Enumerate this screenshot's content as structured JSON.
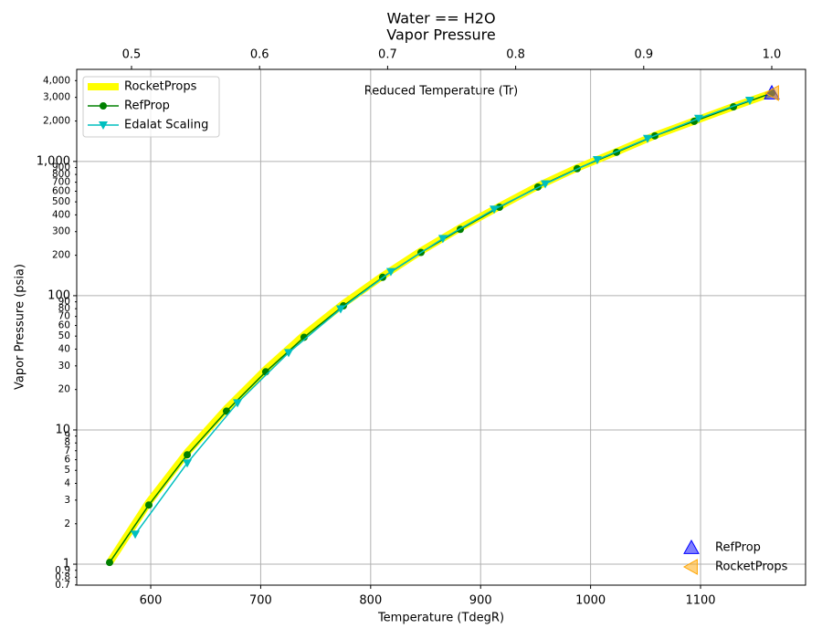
{
  "chart_data": {
    "type": "line",
    "title": "Water == H2O",
    "subtitle": "Vapor Pressure",
    "xlabel": "Temperature (TdegR)",
    "ylabel": "Vapor Pressure (psia)",
    "x2label": "Reduced Temperature (Tr)",
    "xlim": [
      532.7,
      1195.5
    ],
    "xticks": [
      600,
      700,
      800,
      900,
      1000,
      1100
    ],
    "x2lim": [
      0.4572,
      1.0264
    ],
    "x2ticks": [
      0.5,
      0.6,
      0.7,
      0.8,
      0.9,
      {
        "value": 1,
        "label": "1.0"
      }
    ],
    "ylim": [
      0.698,
      4850
    ],
    "log_y": true,
    "yticks": [
      1,
      10,
      100,
      {
        "value": 1000,
        "label": "1,000"
      }
    ],
    "yminor_ticks": [
      0.7,
      0.8,
      0.9,
      2,
      3,
      4,
      5,
      6,
      7,
      8,
      9,
      20,
      30,
      40,
      50,
      60,
      70,
      80,
      90,
      200,
      300,
      400,
      500,
      600,
      700,
      800,
      900,
      {
        "value": 2000,
        "label": "2,000"
      },
      {
        "value": 3000,
        "label": "3,000"
      },
      {
        "value": 4000,
        "label": "4,000"
      }
    ],
    "grid": true,
    "legend": "upper left",
    "series": [
      {
        "name": "RocketProps",
        "color": "#ffff00",
        "linewidth": 8,
        "marker": "none",
        "x": [
          562.6,
          598.3,
          633.2,
          668.9,
          704.6,
          739.5,
          775.2,
          810.9,
          845.8,
          881.5,
          917.2,
          952.1,
          987.8,
          1023.6,
          1058.4,
          1094.2,
          1129.9,
          1164.8
        ],
        "values": [
          1.03,
          2.9,
          6.8,
          14.4,
          28.2,
          51,
          87,
          140,
          215,
          320,
          462,
          655,
          895,
          1180,
          1560,
          2000,
          2560,
          3230
        ]
      },
      {
        "name": "RefProp",
        "color": "#008000",
        "linewidth": 1.5,
        "marker": "circle",
        "x": [
          562.6,
          598.3,
          633.2,
          668.9,
          704.6,
          739.5,
          775.2,
          810.9,
          845.8,
          881.5,
          917.2,
          952.1,
          987.8,
          1023.6,
          1058.4,
          1094.2,
          1129.9,
          1164.8
        ],
        "values": [
          1.03,
          2.76,
          6.53,
          13.8,
          27.1,
          49,
          84,
          137,
          210,
          312,
          456,
          645,
          883,
          1170,
          1550,
          1990,
          2550,
          3230
        ]
      },
      {
        "name": "Edalat Scaling",
        "color": "#00bfbf",
        "linewidth": 1.5,
        "marker": "triangle-down",
        "x": [
          585.9,
          633.2,
          678.9,
          725.4,
          772.7,
          818.4,
          865.7,
          912.3,
          958.8,
          1006.1,
          1051.8,
          1098.3,
          1144.8
        ],
        "values": [
          1.67,
          5.67,
          15.9,
          37.6,
          79.6,
          151,
          266,
          440,
          680,
          1030,
          1480,
          2090,
          2850
        ]
      }
    ],
    "critical_legend": "lower right",
    "critical_points": [
      {
        "name": "RefProp",
        "color": "#0000ff",
        "marker": "triangle-up",
        "x": [
          1164.8
        ],
        "values": [
          3230
        ]
      },
      {
        "name": "RocketProps",
        "color": "#ffa500",
        "marker": "triangle-left",
        "x": [
          1165.6
        ],
        "values": [
          3230
        ]
      }
    ]
  }
}
